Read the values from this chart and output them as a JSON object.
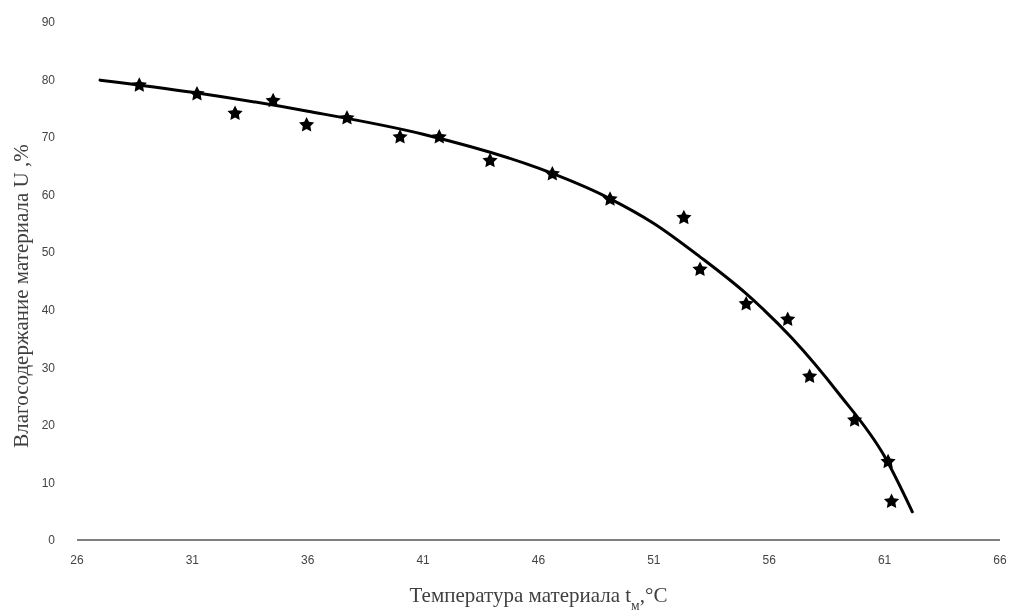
{
  "chart_data": {
    "type": "scatter",
    "xlabel": "Температура материала  t$_{м}$,°C",
    "ylabel": "Влагосодержание материала U ,%",
    "xlim": [
      26,
      66
    ],
    "xticks": [
      26,
      31,
      36,
      41,
      46,
      51,
      56,
      61,
      66
    ],
    "ylim": [
      0,
      90
    ],
    "yticks": [
      0,
      10,
      20,
      30,
      40,
      50,
      60,
      70,
      80,
      90
    ],
    "grid": false,
    "series": [
      {
        "color": "#000000",
        "marker": "star",
        "x": [
          28.7,
          31.2,
          32.85,
          34.5,
          35.95,
          37.7,
          40.0,
          41.7,
          43.9,
          46.6,
          49.1,
          52.3,
          53.0,
          55.0,
          56.8,
          57.75,
          59.7,
          61.15,
          61.3
        ],
        "values": [
          79.0,
          77.5,
          74.1,
          76.3,
          72.1,
          73.3,
          70.0,
          70.0,
          65.9,
          63.6,
          59.2,
          56.0,
          47.0,
          41.0,
          38.3,
          28.4,
          20.8,
          13.6,
          6.7
        ]
      },
      {
        "type": "line",
        "color": "#000000",
        "marker": "none",
        "line_style": "solid",
        "x": [
          27,
          31,
          36,
          41,
          46,
          49,
          51,
          53,
          55,
          57,
          59,
          61,
          62.2
        ],
        "values": [
          79.9,
          77.8,
          74.5,
          70.5,
          64.6,
          59.5,
          55,
          49.2,
          42.8,
          35,
          25.5,
          14.5,
          4.9
        ]
      }
    ]
  }
}
